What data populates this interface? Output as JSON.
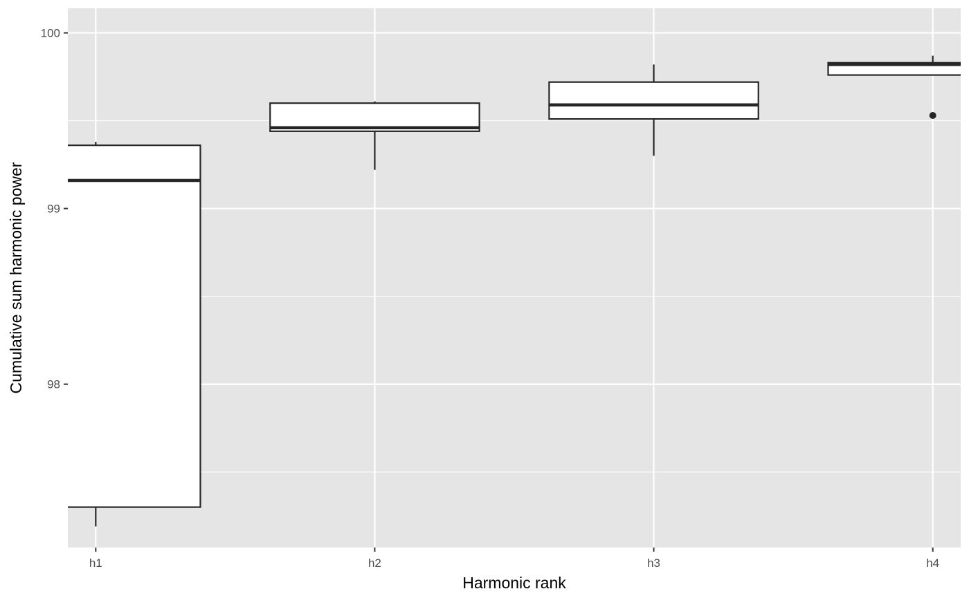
{
  "chart_data": {
    "type": "boxplot",
    "title": "",
    "xlabel": "Harmonic rank",
    "ylabel": "Cumulative sum harmonic power",
    "categories": [
      "h1",
      "h2",
      "h3",
      "h4"
    ],
    "ylim": [
      97.07,
      100.14
    ],
    "xlim": [
      -0.1,
      3.1
    ],
    "yticks": [
      98,
      99,
      100
    ],
    "ytick_labels": [
      "98",
      "99",
      "100"
    ],
    "grid": true,
    "panel_color": "#e5e5e5",
    "gridline_color": "#ffffff",
    "box_fill": "#ffffff",
    "box_stroke": "#262626",
    "boxes": [
      {
        "category": "h1",
        "whisker_low": 97.19,
        "q1": 97.3,
        "median": 99.16,
        "q3": 99.36,
        "whisker_high": 99.38,
        "outliers": []
      },
      {
        "category": "h2",
        "whisker_low": 99.22,
        "q1": 99.44,
        "median": 99.46,
        "q3": 99.6,
        "whisker_high": 99.61,
        "outliers": []
      },
      {
        "category": "h3",
        "whisker_low": 99.3,
        "q1": 99.51,
        "median": 99.59,
        "q3": 99.72,
        "whisker_high": 99.82,
        "outliers": []
      },
      {
        "category": "h4",
        "whisker_low": 99.76,
        "q1": 99.76,
        "median": 99.82,
        "q3": 99.83,
        "whisker_high": 99.87,
        "outliers": [
          99.53
        ]
      }
    ]
  }
}
